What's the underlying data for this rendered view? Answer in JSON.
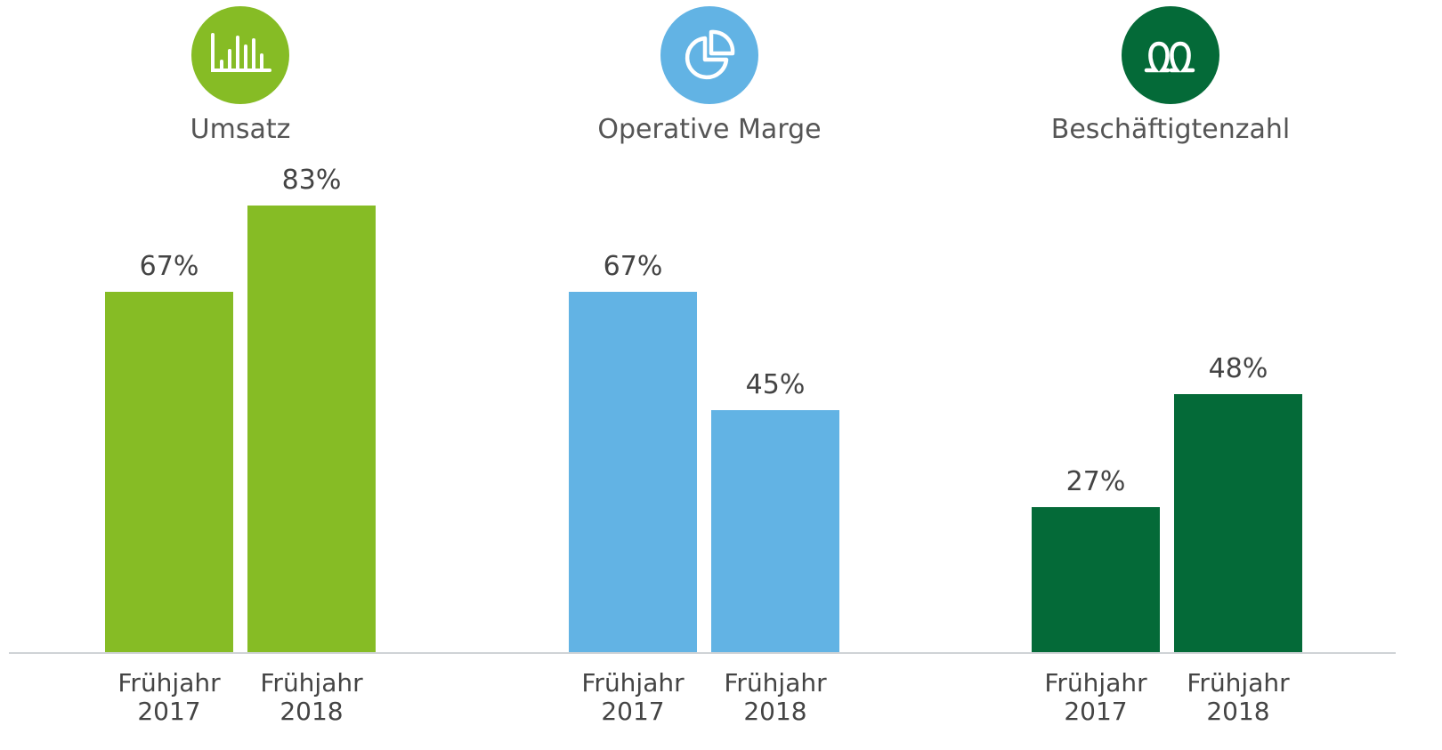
{
  "chart_data": [
    {
      "type": "bar",
      "title": "Umsatz",
      "categories": [
        "Frühjahr 2017",
        "Frühjahr 2018"
      ],
      "values": [
        67,
        83
      ],
      "value_labels": [
        "67%",
        "83%"
      ],
      "color": "#86bc25",
      "ylim": [
        0,
        100
      ]
    },
    {
      "type": "bar",
      "title": "Operative Marge",
      "categories": [
        "Frühjahr 2017",
        "Frühjahr 2018"
      ],
      "values": [
        67,
        45
      ],
      "value_labels": [
        "67%",
        "45%"
      ],
      "color": "#62b3e4",
      "ylim": [
        0,
        100
      ]
    },
    {
      "type": "bar",
      "title": "Beschäftigtenzahl",
      "categories": [
        "Frühjahr 2017",
        "Frühjahr 2018"
      ],
      "values": [
        27,
        48
      ],
      "value_labels": [
        "27%",
        "48%"
      ],
      "color": "#046a38",
      "ylim": [
        0,
        100
      ]
    }
  ]
}
